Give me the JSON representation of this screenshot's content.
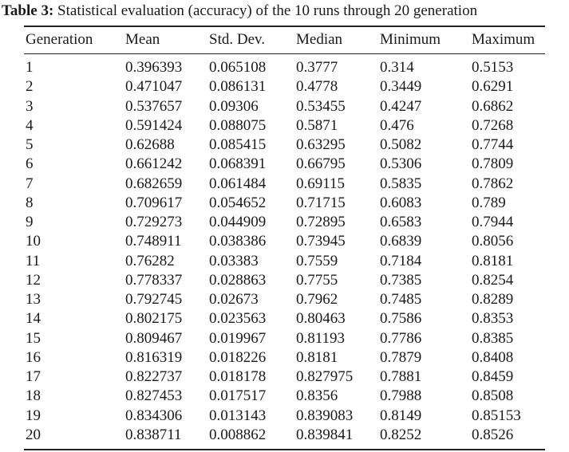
{
  "caption": {
    "label": "Table 3:",
    "text": "Statistical evaluation (accuracy) of the 10 runs through 20 generation"
  },
  "table": {
    "headers": [
      "Generation",
      "Mean",
      "Std. Dev.",
      "Median",
      "Minimum",
      "Maximum"
    ],
    "rows": [
      [
        "1",
        "0.396393",
        "0.065108",
        "0.3777",
        "0.314",
        "0.5153"
      ],
      [
        "2",
        "0.471047",
        "0.086131",
        "0.4778",
        "0.3449",
        "0.6291"
      ],
      [
        "3",
        "0.537657",
        "0.09306",
        "0.53455",
        "0.4247",
        "0.6862"
      ],
      [
        "4",
        "0.591424",
        "0.088075",
        "0.5871",
        "0.476",
        "0.7268"
      ],
      [
        "5",
        "0.62688",
        "0.085415",
        "0.63295",
        "0.5082",
        "0.7744"
      ],
      [
        "6",
        "0.661242",
        "0.068391",
        "0.66795",
        "0.5306",
        "0.7809"
      ],
      [
        "7",
        "0.682659",
        "0.061484",
        "0.69115",
        "0.5835",
        "0.7862"
      ],
      [
        "8",
        "0.709617",
        "0.054652",
        "0.71715",
        "0.6083",
        "0.789"
      ],
      [
        "9",
        "0.729273",
        "0.044909",
        "0.72895",
        "0.6583",
        "0.7944"
      ],
      [
        "10",
        "0.748911",
        "0.038386",
        "0.73945",
        "0.6839",
        "0.8056"
      ],
      [
        "11",
        "0.76282",
        "0.03383",
        "0.7559",
        "0.7184",
        "0.8181"
      ],
      [
        "12",
        "0.778337",
        "0.028863",
        "0.7755",
        "0.7385",
        "0.8254"
      ],
      [
        "13",
        "0.792745",
        "0.02673",
        "0.7962",
        "0.7485",
        "0.8289"
      ],
      [
        "14",
        "0.802175",
        "0.023563",
        "0.80463",
        "0.7586",
        "0.8353"
      ],
      [
        "15",
        "0.809467",
        "0.019967",
        "0.81193",
        "0.7786",
        "0.8385"
      ],
      [
        "16",
        "0.816319",
        "0.018226",
        "0.8181",
        "0.7879",
        "0.8408"
      ],
      [
        "17",
        "0.822737",
        "0.018178",
        "0.827975",
        "0.7881",
        "0.8459"
      ],
      [
        "18",
        "0.827453",
        "0.017517",
        "0.8356",
        "0.7988",
        "0.8508"
      ],
      [
        "19",
        "0.834306",
        "0.013143",
        "0.839083",
        "0.8149",
        "0.85153"
      ],
      [
        "20",
        "0.838711",
        "0.008862",
        "0.839841",
        "0.8252",
        "0.8526"
      ]
    ]
  }
}
